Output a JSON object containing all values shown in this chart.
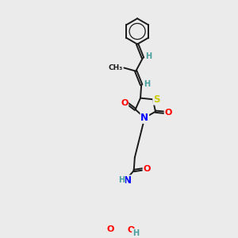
{
  "bg_color": "#ebebeb",
  "figsize": [
    3.0,
    3.0
  ],
  "dpi": 100,
  "atom_colors": {
    "C": "#1a1a1a",
    "H": "#4a9e9e",
    "N": "#0000ff",
    "O": "#ff0000",
    "S": "#cccc00"
  },
  "bond_color": "#1a1a1a",
  "bond_width": 1.4,
  "font_size": 7.0
}
